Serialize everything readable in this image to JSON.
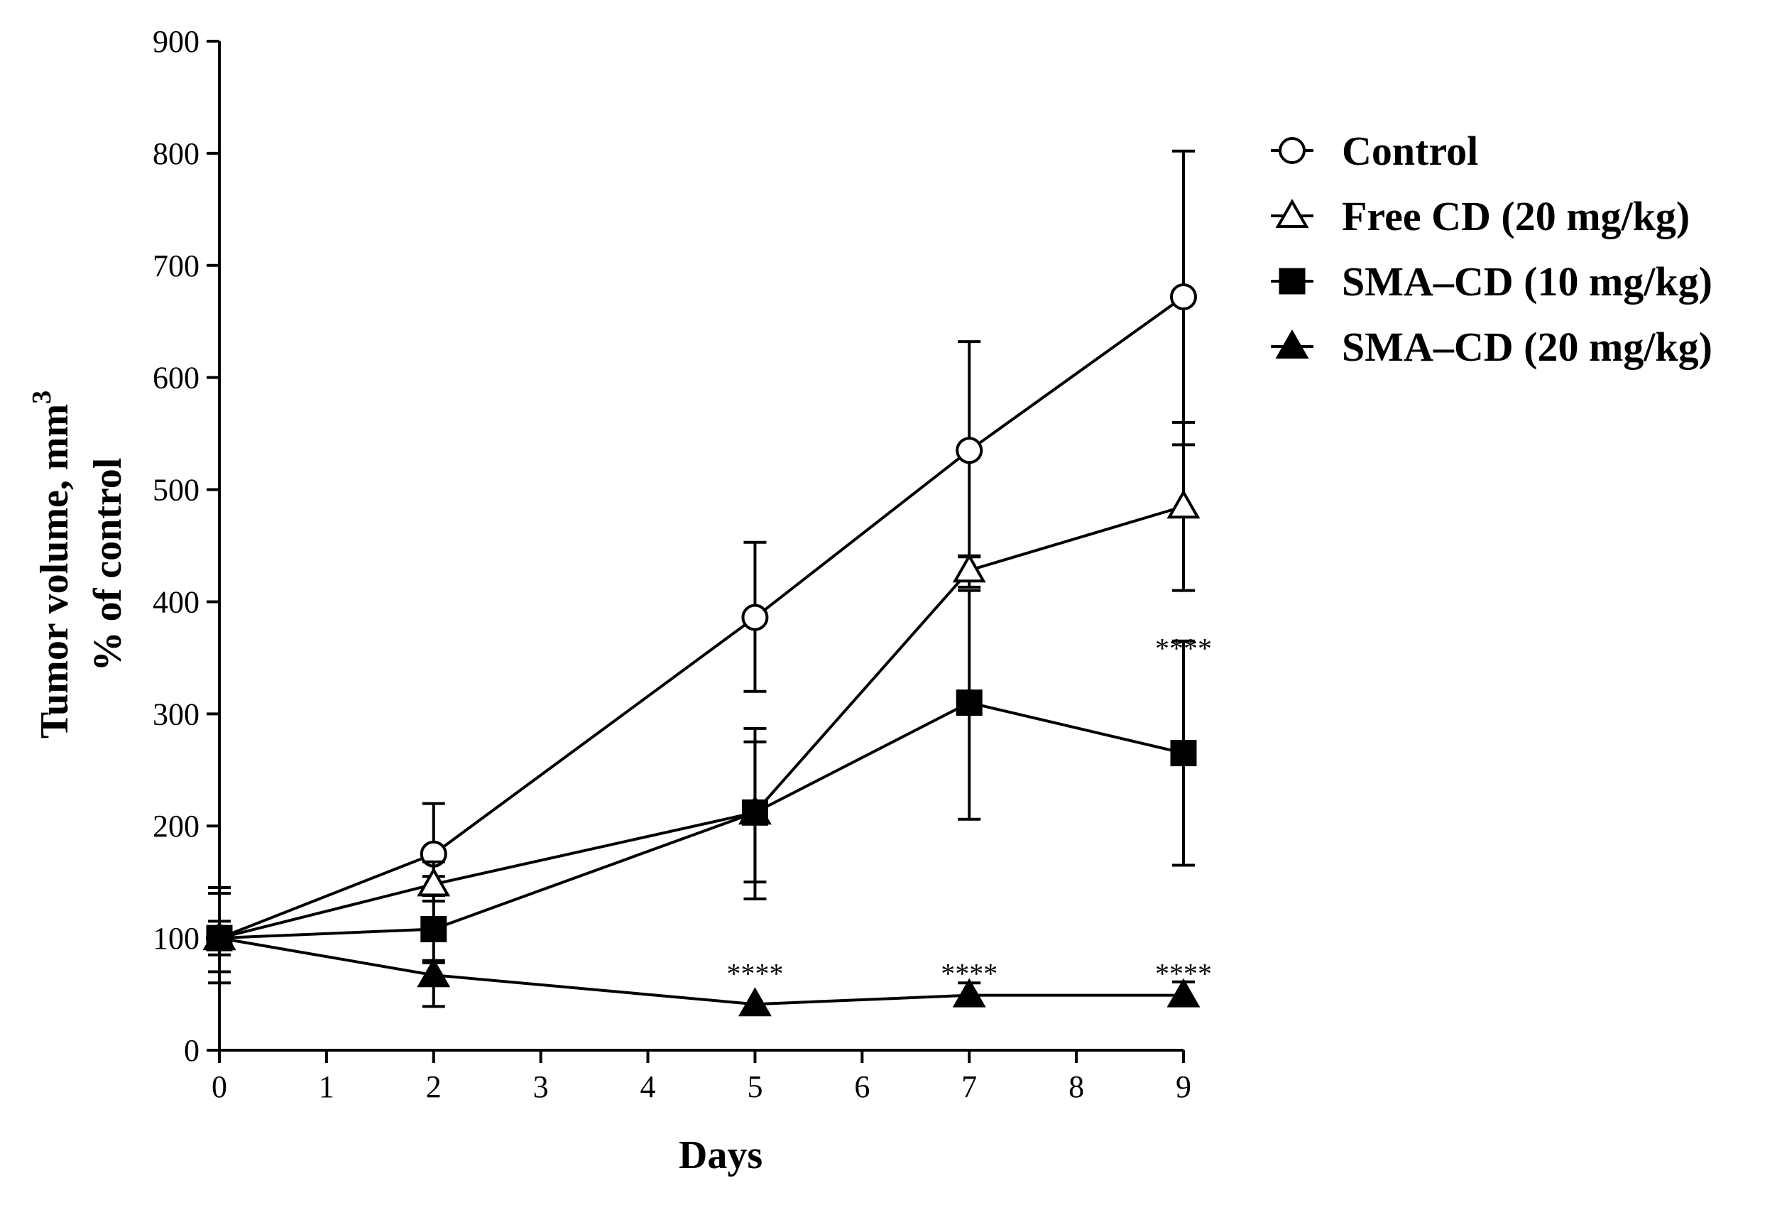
{
  "chart_data": {
    "type": "line",
    "title": "",
    "xlabel": "Days",
    "ylabel_line1": "Tumor volume, mm",
    "ylabel_sup": "3",
    "ylabel_line2": "% of control",
    "xlim": [
      0,
      9
    ],
    "ylim": [
      0,
      900
    ],
    "xticks": [
      0,
      1,
      2,
      3,
      4,
      5,
      6,
      7,
      8,
      9
    ],
    "yticks": [
      0,
      100,
      200,
      300,
      400,
      500,
      600,
      700,
      800,
      900
    ],
    "legend_position": "right",
    "series": [
      {
        "name": "Control",
        "marker": "circle-open",
        "x": [
          0,
          2,
          5,
          7,
          9
        ],
        "y": [
          100,
          175,
          386,
          535,
          672
        ],
        "error": [
          [
            30,
            45
          ],
          [
            20,
            45
          ],
          [
            66,
            67
          ],
          [
            95,
            97
          ],
          [
            132,
            130
          ]
        ]
      },
      {
        "name": "Free CD (20 mg/kg)",
        "marker": "triangle-open",
        "x": [
          0,
          2,
          5,
          7,
          9
        ],
        "y": [
          100,
          148,
          212,
          428,
          485
        ],
        "error": [
          [
            30,
            40
          ],
          [
            15,
            20
          ],
          [
            62,
            63
          ],
          [
            15,
            13
          ],
          [
            75,
            75
          ]
        ]
      },
      {
        "name": "SMA–CD (10 mg/kg)",
        "marker": "square-filled",
        "x": [
          0,
          2,
          5,
          7,
          9
        ],
        "y": [
          100,
          108,
          212,
          310,
          265
        ],
        "error": [
          [
            40,
            40
          ],
          [
            30,
            30
          ],
          [
            77,
            75
          ],
          [
            104,
            100
          ],
          [
            100,
            100
          ]
        ]
      },
      {
        "name": "SMA–CD (20 mg/kg)",
        "marker": "triangle-filled",
        "x": [
          0,
          2,
          5,
          7,
          9
        ],
        "y": [
          100,
          67,
          41,
          49,
          49
        ],
        "error": [
          [
            15,
            15
          ],
          [
            28,
            13
          ],
          [
            0,
            0
          ],
          [
            0,
            11
          ],
          [
            0,
            12
          ]
        ]
      }
    ],
    "annotations": [
      {
        "x": 5,
        "y": 60,
        "text": "****"
      },
      {
        "x": 7,
        "y": 60,
        "text": "****"
      },
      {
        "x": 9,
        "y": 60,
        "text": "****"
      },
      {
        "x": 9,
        "y": 350,
        "text": "****"
      }
    ]
  },
  "colors": {
    "ink": "#000000",
    "background": "#ffffff",
    "marker_fill_open": "#ffffff"
  }
}
